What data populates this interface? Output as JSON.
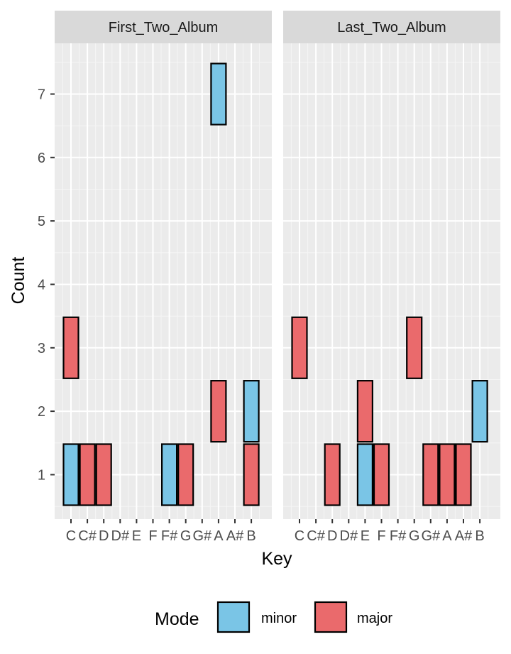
{
  "chart_data": {
    "type": "bar",
    "panels": [
      "First_Two_Album",
      "Last_Two_Album"
    ],
    "categories": [
      "C",
      "C#",
      "D",
      "D#",
      "E",
      "F",
      "F#",
      "G",
      "G#",
      "A",
      "A#",
      "B"
    ],
    "xlabel": "Key",
    "ylabel": "Count",
    "yticks": [
      1,
      2,
      3,
      4,
      5,
      6,
      7
    ],
    "ylim": [
      0.3,
      7.8
    ],
    "grid": true,
    "legend": {
      "title": "Mode",
      "position": "bottom",
      "items": [
        {
          "label": "minor",
          "color": "#7AC5E6"
        },
        {
          "label": "major",
          "color": "#EA6A6C"
        }
      ]
    },
    "tiles": [
      {
        "panel": "First_Two_Album",
        "key": "C",
        "count": 1,
        "mode": "minor"
      },
      {
        "panel": "First_Two_Album",
        "key": "C#",
        "count": 1,
        "mode": "major"
      },
      {
        "panel": "First_Two_Album",
        "key": "D",
        "count": 1,
        "mode": "major"
      },
      {
        "panel": "First_Two_Album",
        "key": "C",
        "count": 3,
        "mode": "major"
      },
      {
        "panel": "First_Two_Album",
        "key": "F#",
        "count": 1,
        "mode": "minor"
      },
      {
        "panel": "First_Two_Album",
        "key": "G",
        "count": 1,
        "mode": "major"
      },
      {
        "panel": "First_Two_Album",
        "key": "A",
        "count": 7,
        "mode": "minor"
      },
      {
        "panel": "First_Two_Album",
        "key": "A",
        "count": 2,
        "mode": "major"
      },
      {
        "panel": "First_Two_Album",
        "key": "B",
        "count": 2,
        "mode": "minor"
      },
      {
        "panel": "First_Two_Album",
        "key": "B",
        "count": 1,
        "mode": "major"
      },
      {
        "panel": "Last_Two_Album",
        "key": "C",
        "count": 3,
        "mode": "major"
      },
      {
        "panel": "Last_Two_Album",
        "key": "D",
        "count": 1,
        "mode": "major"
      },
      {
        "panel": "Last_Two_Album",
        "key": "E",
        "count": 2,
        "mode": "major"
      },
      {
        "panel": "Last_Two_Album",
        "key": "E",
        "count": 1,
        "mode": "minor"
      },
      {
        "panel": "Last_Two_Album",
        "key": "F",
        "count": 1,
        "mode": "major"
      },
      {
        "panel": "Last_Two_Album",
        "key": "G",
        "count": 3,
        "mode": "major"
      },
      {
        "panel": "Last_Two_Album",
        "key": "G#",
        "count": 1,
        "mode": "major"
      },
      {
        "panel": "Last_Two_Album",
        "key": "A",
        "count": 1,
        "mode": "major"
      },
      {
        "panel": "Last_Two_Album",
        "key": "A#",
        "count": 1,
        "mode": "major"
      },
      {
        "panel": "Last_Two_Album",
        "key": "B",
        "count": 2,
        "mode": "minor"
      }
    ]
  }
}
